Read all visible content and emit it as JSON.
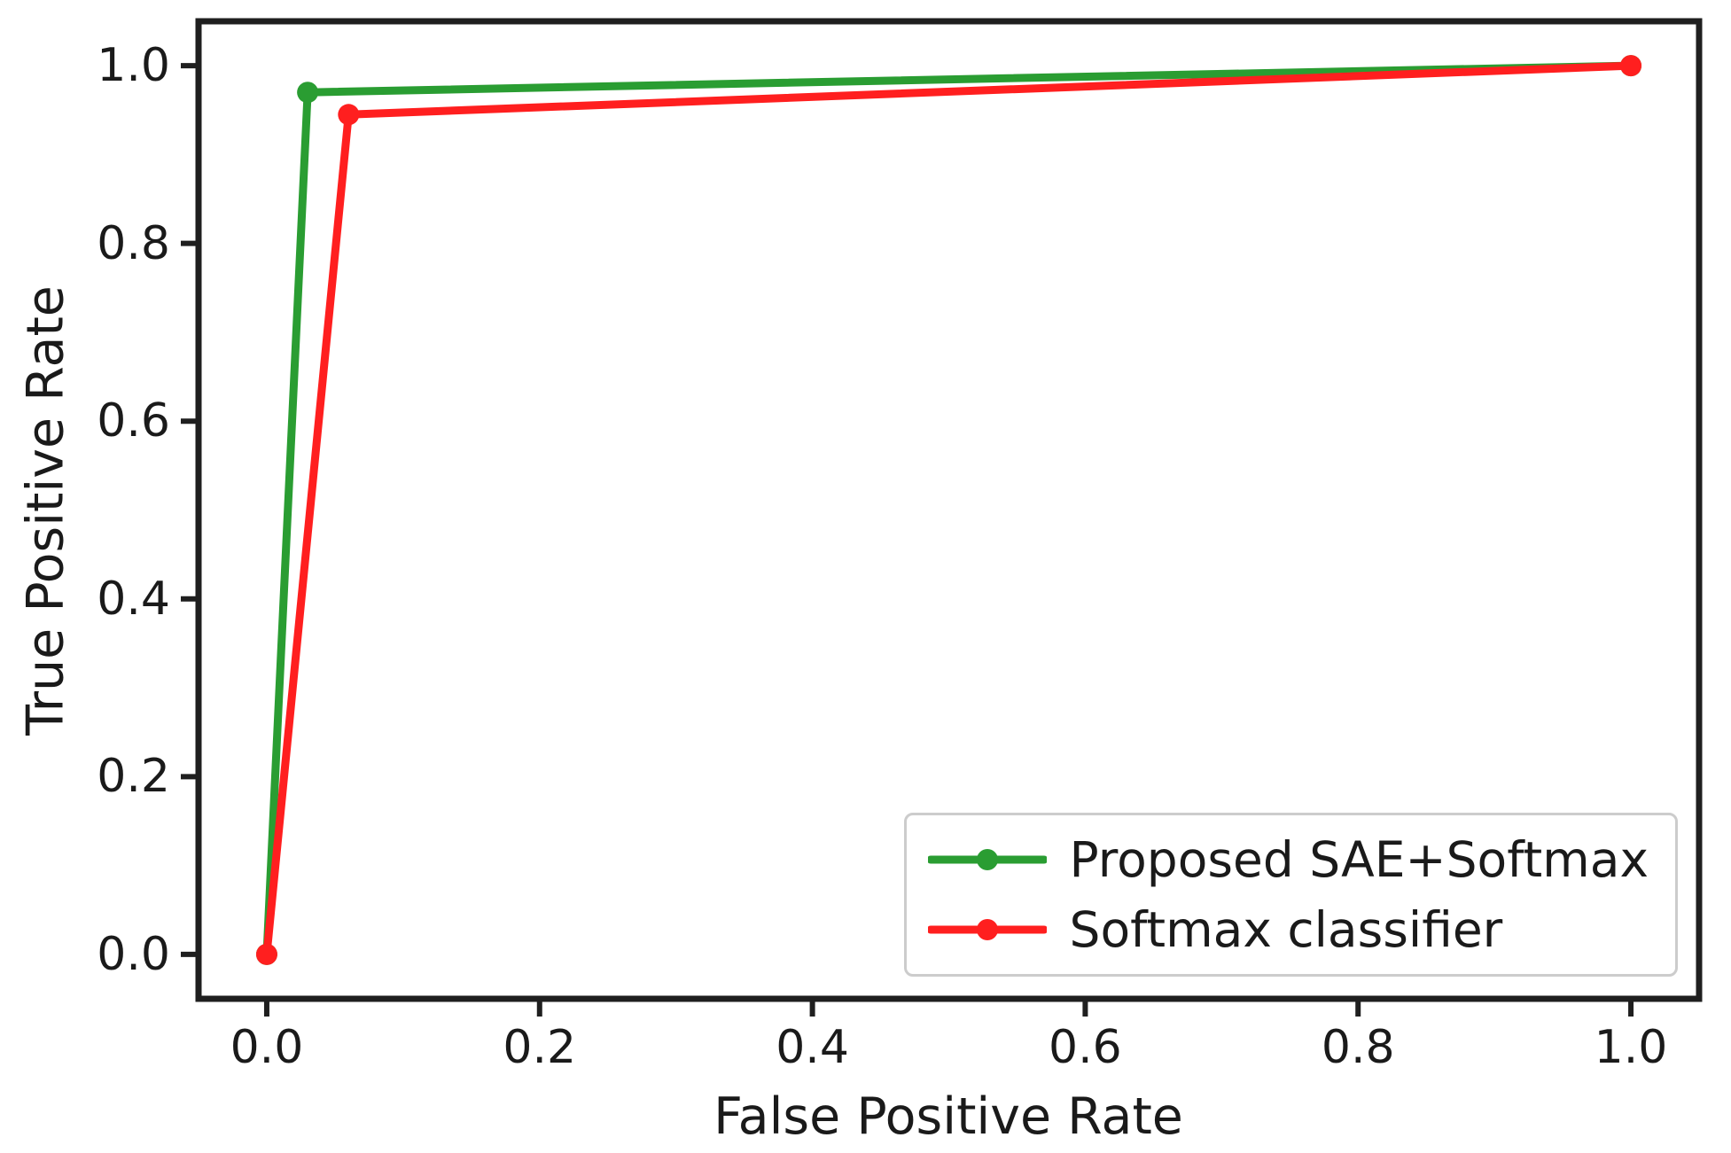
{
  "figure": {
    "background_color": "#ffffff",
    "axis_color": "#1f1f1f",
    "text_color": "#1a1a1a"
  },
  "chart_data": {
    "type": "line",
    "subtype": "roc-curve",
    "title": "",
    "xlabel": "False Positive Rate",
    "ylabel": "True Positive Rate",
    "xlim": [
      -0.05,
      1.05
    ],
    "ylim": [
      -0.05,
      1.05
    ],
    "grid": false,
    "xticks": {
      "values": [
        0.0,
        0.2,
        0.4,
        0.6,
        0.8,
        1.0
      ],
      "labels": [
        "0.0",
        "0.2",
        "0.4",
        "0.6",
        "0.8",
        "1.0"
      ]
    },
    "yticks": {
      "values": [
        0.0,
        0.2,
        0.4,
        0.6,
        0.8,
        1.0
      ],
      "labels": [
        "0.0",
        "0.2",
        "0.4",
        "0.6",
        "0.8",
        "1.0"
      ]
    },
    "series": [
      {
        "name": "Proposed SAE+Softmax",
        "color": "#2a9d32",
        "marker": "circle",
        "x": [
          0.0,
          0.03,
          1.0
        ],
        "y": [
          0.0,
          0.97,
          1.0
        ]
      },
      {
        "name": "Softmax classifier",
        "color": "#ff1f1f",
        "marker": "circle",
        "x": [
          0.0,
          0.06,
          1.0
        ],
        "y": [
          0.0,
          0.945,
          1.0
        ]
      }
    ],
    "legend": {
      "position": "lower right",
      "border_color": "#cccccc",
      "background_color": "#ffffff",
      "entries": [
        "Proposed SAE+Softmax",
        "Softmax classifier"
      ]
    }
  }
}
